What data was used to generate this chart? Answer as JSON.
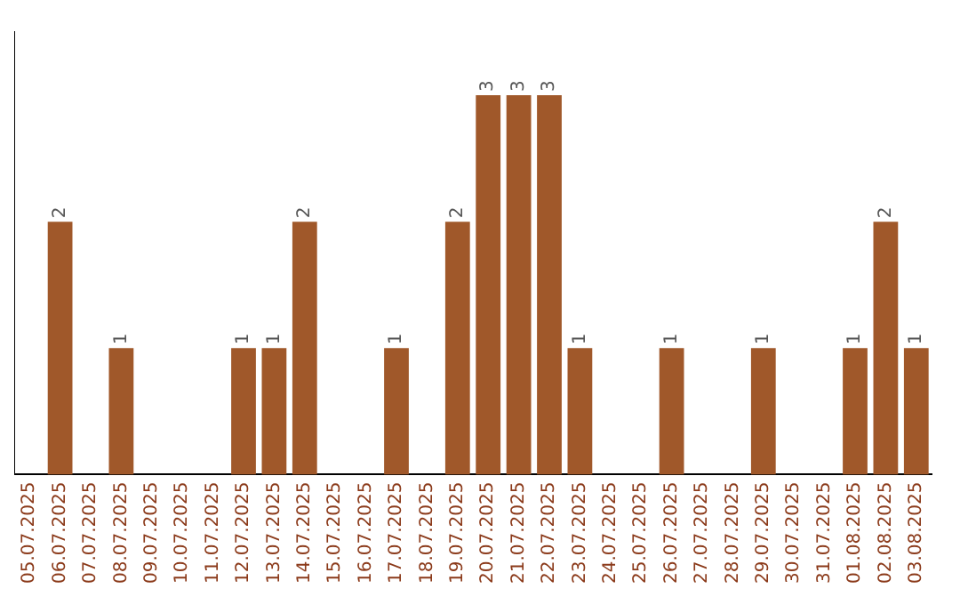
{
  "chart_data": {
    "type": "bar",
    "categories": [
      "05.07.2025",
      "06.07.2025",
      "07.07.2025",
      "08.07.2025",
      "09.07.2025",
      "10.07.2025",
      "11.07.2025",
      "12.07.2025",
      "13.07.2025",
      "14.07.2025",
      "15.07.2025",
      "16.07.2025",
      "17.07.2025",
      "18.07.2025",
      "19.07.2025",
      "20.07.2025",
      "21.07.2025",
      "22.07.2025",
      "23.07.2025",
      "24.07.2025",
      "25.07.2025",
      "26.07.2025",
      "27.07.2025",
      "28.07.2025",
      "29.07.2025",
      "30.07.2025",
      "31.07.2025",
      "01.08.2025",
      "02.08.2025",
      "03.08.2025"
    ],
    "values": [
      null,
      2,
      null,
      1,
      null,
      null,
      null,
      1,
      1,
      2,
      null,
      null,
      1,
      null,
      2,
      3,
      3,
      3,
      1,
      null,
      null,
      1,
      null,
      null,
      1,
      null,
      null,
      1,
      2,
      1
    ],
    "color": "#a0582a",
    "data_labels": true,
    "tick_labels": "x",
    "grid": false,
    "legend": false
  }
}
